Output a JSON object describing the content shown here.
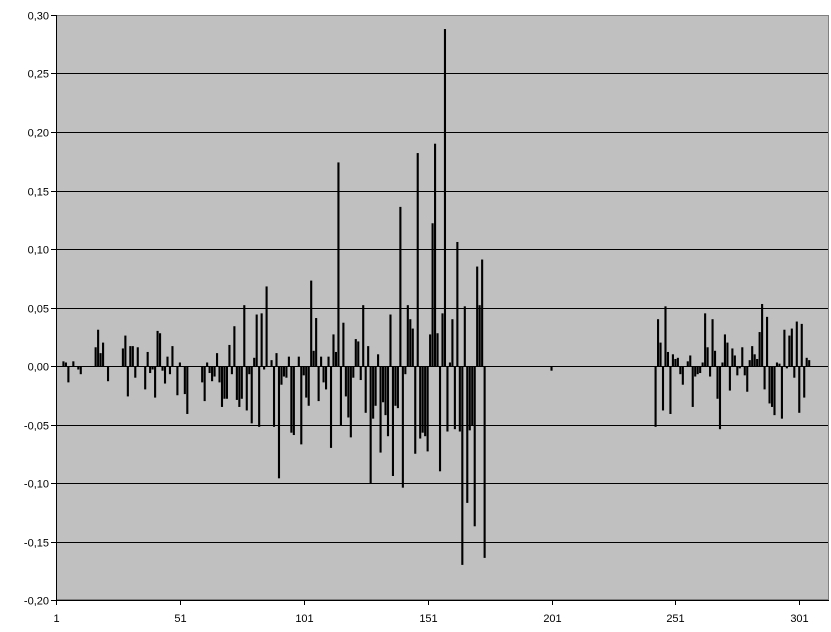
{
  "chart_data": {
    "type": "bar",
    "title": "",
    "xlabel": "",
    "ylabel": "",
    "xlim": [
      1,
      313
    ],
    "ylim": [
      -0.2,
      0.3
    ],
    "grid": true,
    "legend": "none",
    "x_ticks": [
      {
        "value": 1,
        "label": "1"
      },
      {
        "value": 51,
        "label": "51"
      },
      {
        "value": 101,
        "label": "101"
      },
      {
        "value": 151,
        "label": "151"
      },
      {
        "value": 201,
        "label": "201"
      },
      {
        "value": 251,
        "label": "251"
      },
      {
        "value": 301,
        "label": "301"
      }
    ],
    "y_ticks": [
      {
        "value": 0.3,
        "label": "0,30"
      },
      {
        "value": 0.25,
        "label": "0,25"
      },
      {
        "value": 0.2,
        "label": "0,20"
      },
      {
        "value": 0.15,
        "label": "0,15"
      },
      {
        "value": 0.1,
        "label": "0,10"
      },
      {
        "value": 0.05,
        "label": "0,05"
      },
      {
        "value": 0.0,
        "label": "0,00"
      },
      {
        "value": -0.05,
        "label": "-0,05"
      },
      {
        "value": -0.1,
        "label": "-0,10"
      },
      {
        "value": -0.15,
        "label": "-0,15"
      },
      {
        "value": -0.2,
        "label": "-0,20"
      }
    ],
    "series": [
      {
        "values": [
          [
            4,
            0.004
          ],
          [
            5,
            0.003
          ],
          [
            6,
            -0.014
          ],
          [
            8,
            0.004
          ],
          [
            10,
            -0.003
          ],
          [
            11,
            -0.007
          ],
          [
            17,
            0.016
          ],
          [
            18,
            0.031
          ],
          [
            19,
            0.011
          ],
          [
            20,
            0.02
          ],
          [
            22,
            -0.013
          ],
          [
            28,
            0.015
          ],
          [
            29,
            0.026
          ],
          [
            30,
            -0.026
          ],
          [
            31,
            0.017
          ],
          [
            32,
            0.017
          ],
          [
            33,
            -0.01
          ],
          [
            34,
            0.016
          ],
          [
            37,
            -0.02
          ],
          [
            38,
            0.012
          ],
          [
            39,
            -0.006
          ],
          [
            40,
            -0.003
          ],
          [
            41,
            -0.027
          ],
          [
            42,
            0.03
          ],
          [
            43,
            0.028
          ],
          [
            44,
            -0.004
          ],
          [
            45,
            -0.015
          ],
          [
            46,
            0.008
          ],
          [
            47,
            -0.007
          ],
          [
            48,
            0.017
          ],
          [
            50,
            -0.025
          ],
          [
            51,
            0.003
          ],
          [
            53,
            -0.024
          ],
          [
            54,
            -0.041
          ],
          [
            60,
            -0.014
          ],
          [
            61,
            -0.03
          ],
          [
            62,
            0.003
          ],
          [
            63,
            -0.006
          ],
          [
            64,
            -0.013
          ],
          [
            65,
            -0.009
          ],
          [
            66,
            0.011
          ],
          [
            67,
            -0.014
          ],
          [
            68,
            -0.035
          ],
          [
            69,
            -0.028
          ],
          [
            70,
            -0.028
          ],
          [
            71,
            0.018
          ],
          [
            72,
            -0.007
          ],
          [
            73,
            0.034
          ],
          [
            74,
            -0.029
          ],
          [
            75,
            -0.035
          ],
          [
            76,
            -0.028
          ],
          [
            77,
            0.052
          ],
          [
            78,
            -0.038
          ],
          [
            79,
            -0.007
          ],
          [
            80,
            -0.049
          ],
          [
            81,
            0.007
          ],
          [
            82,
            0.044
          ],
          [
            83,
            -0.052
          ],
          [
            84,
            0.045
          ],
          [
            85,
            -0.003
          ],
          [
            86,
            0.068
          ],
          [
            88,
            0.005
          ],
          [
            89,
            -0.052
          ],
          [
            90,
            0.011
          ],
          [
            91,
            -0.096
          ],
          [
            92,
            -0.016
          ],
          [
            93,
            -0.009
          ],
          [
            94,
            -0.01
          ],
          [
            95,
            0.008
          ],
          [
            96,
            -0.057
          ],
          [
            97,
            -0.059
          ],
          [
            99,
            0.008
          ],
          [
            100,
            -0.067
          ],
          [
            101,
            -0.008
          ],
          [
            102,
            -0.027
          ],
          [
            103,
            -0.034
          ],
          [
            104,
            0.073
          ],
          [
            105,
            0.013
          ],
          [
            106,
            0.041
          ],
          [
            107,
            -0.03
          ],
          [
            108,
            0.008
          ],
          [
            109,
            -0.014
          ],
          [
            110,
            -0.02
          ],
          [
            111,
            0.008
          ],
          [
            112,
            -0.07
          ],
          [
            113,
            0.027
          ],
          [
            114,
            0.012
          ],
          [
            115,
            0.174
          ],
          [
            116,
            -0.051
          ],
          [
            117,
            0.037
          ],
          [
            118,
            -0.026
          ],
          [
            119,
            -0.044
          ],
          [
            120,
            -0.061
          ],
          [
            121,
            -0.01
          ],
          [
            122,
            0.023
          ],
          [
            123,
            0.021
          ],
          [
            124,
            -0.012
          ],
          [
            125,
            0.052
          ],
          [
            126,
            -0.04
          ],
          [
            127,
            0.017
          ],
          [
            128,
            -0.1
          ],
          [
            129,
            -0.045
          ],
          [
            130,
            -0.034
          ],
          [
            131,
            0.01
          ],
          [
            132,
            -0.074
          ],
          [
            133,
            -0.031
          ],
          [
            134,
            -0.042
          ],
          [
            135,
            -0.06
          ],
          [
            136,
            0.044
          ],
          [
            137,
            -0.094
          ],
          [
            138,
            -0.034
          ],
          [
            139,
            -0.036
          ],
          [
            140,
            0.136
          ],
          [
            141,
            -0.104
          ],
          [
            142,
            -0.007
          ],
          [
            143,
            0.052
          ],
          [
            144,
            0.04
          ],
          [
            145,
            0.032
          ],
          [
            146,
            -0.075
          ],
          [
            147,
            0.182
          ],
          [
            148,
            -0.062
          ],
          [
            149,
            -0.057
          ],
          [
            150,
            -0.06
          ],
          [
            151,
            -0.073
          ],
          [
            152,
            0.027
          ],
          [
            153,
            0.122
          ],
          [
            154,
            0.19
          ],
          [
            155,
            0.028
          ],
          [
            156,
            -0.09
          ],
          [
            157,
            0.045
          ],
          [
            158,
            0.288
          ],
          [
            159,
            -0.056
          ],
          [
            160,
            0.003
          ],
          [
            161,
            0.04
          ],
          [
            162,
            -0.054
          ],
          [
            163,
            0.106
          ],
          [
            164,
            -0.056
          ],
          [
            165,
            -0.17
          ],
          [
            166,
            0.051
          ],
          [
            167,
            -0.117
          ],
          [
            168,
            -0.055
          ],
          [
            169,
            -0.051
          ],
          [
            170,
            -0.137
          ],
          [
            171,
            0.085
          ],
          [
            172,
            0.052
          ],
          [
            173,
            0.091
          ],
          [
            174,
            -0.164
          ],
          [
            201,
            -0.004
          ],
          [
            243,
            -0.052
          ],
          [
            244,
            0.04
          ],
          [
            245,
            0.02
          ],
          [
            246,
            -0.038
          ],
          [
            247,
            0.051
          ],
          [
            248,
            0.012
          ],
          [
            249,
            -0.041
          ],
          [
            250,
            0.01
          ],
          [
            251,
            0.006
          ],
          [
            252,
            0.007
          ],
          [
            253,
            -0.007
          ],
          [
            254,
            -0.016
          ],
          [
            256,
            0.004
          ],
          [
            257,
            0.009
          ],
          [
            258,
            -0.035
          ],
          [
            259,
            -0.009
          ],
          [
            260,
            -0.007
          ],
          [
            261,
            -0.006
          ],
          [
            262,
            0.003
          ],
          [
            263,
            0.045
          ],
          [
            264,
            0.016
          ],
          [
            265,
            -0.009
          ],
          [
            266,
            0.04
          ],
          [
            267,
            0.013
          ],
          [
            268,
            -0.028
          ],
          [
            269,
            -0.054
          ],
          [
            270,
            0.003
          ],
          [
            271,
            0.027
          ],
          [
            272,
            0.02
          ],
          [
            273,
            -0.021
          ],
          [
            274,
            0.015
          ],
          [
            275,
            0.009
          ],
          [
            276,
            -0.008
          ],
          [
            277,
            -0.002
          ],
          [
            278,
            0.016
          ],
          [
            279,
            -0.008
          ],
          [
            280,
            -0.022
          ],
          [
            281,
            0.005
          ],
          [
            282,
            0.017
          ],
          [
            283,
            0.01
          ],
          [
            284,
            0.006
          ],
          [
            285,
            0.029
          ],
          [
            286,
            0.053
          ],
          [
            287,
            -0.02
          ],
          [
            288,
            0.042
          ],
          [
            289,
            -0.032
          ],
          [
            290,
            -0.035
          ],
          [
            291,
            -0.042
          ],
          [
            292,
            0.003
          ],
          [
            293,
            0.002
          ],
          [
            294,
            -0.045
          ],
          [
            295,
            0.031
          ],
          [
            296,
            -0.002
          ],
          [
            297,
            0.026
          ],
          [
            298,
            0.032
          ],
          [
            299,
            -0.01
          ],
          [
            300,
            0.038
          ],
          [
            301,
            -0.04
          ],
          [
            302,
            0.036
          ],
          [
            303,
            -0.027
          ],
          [
            304,
            0.007
          ],
          [
            305,
            0.005
          ]
        ]
      }
    ],
    "colors": {
      "plot_background": "#c0c0c0",
      "bar": "#000000",
      "grid": "#000000"
    }
  }
}
